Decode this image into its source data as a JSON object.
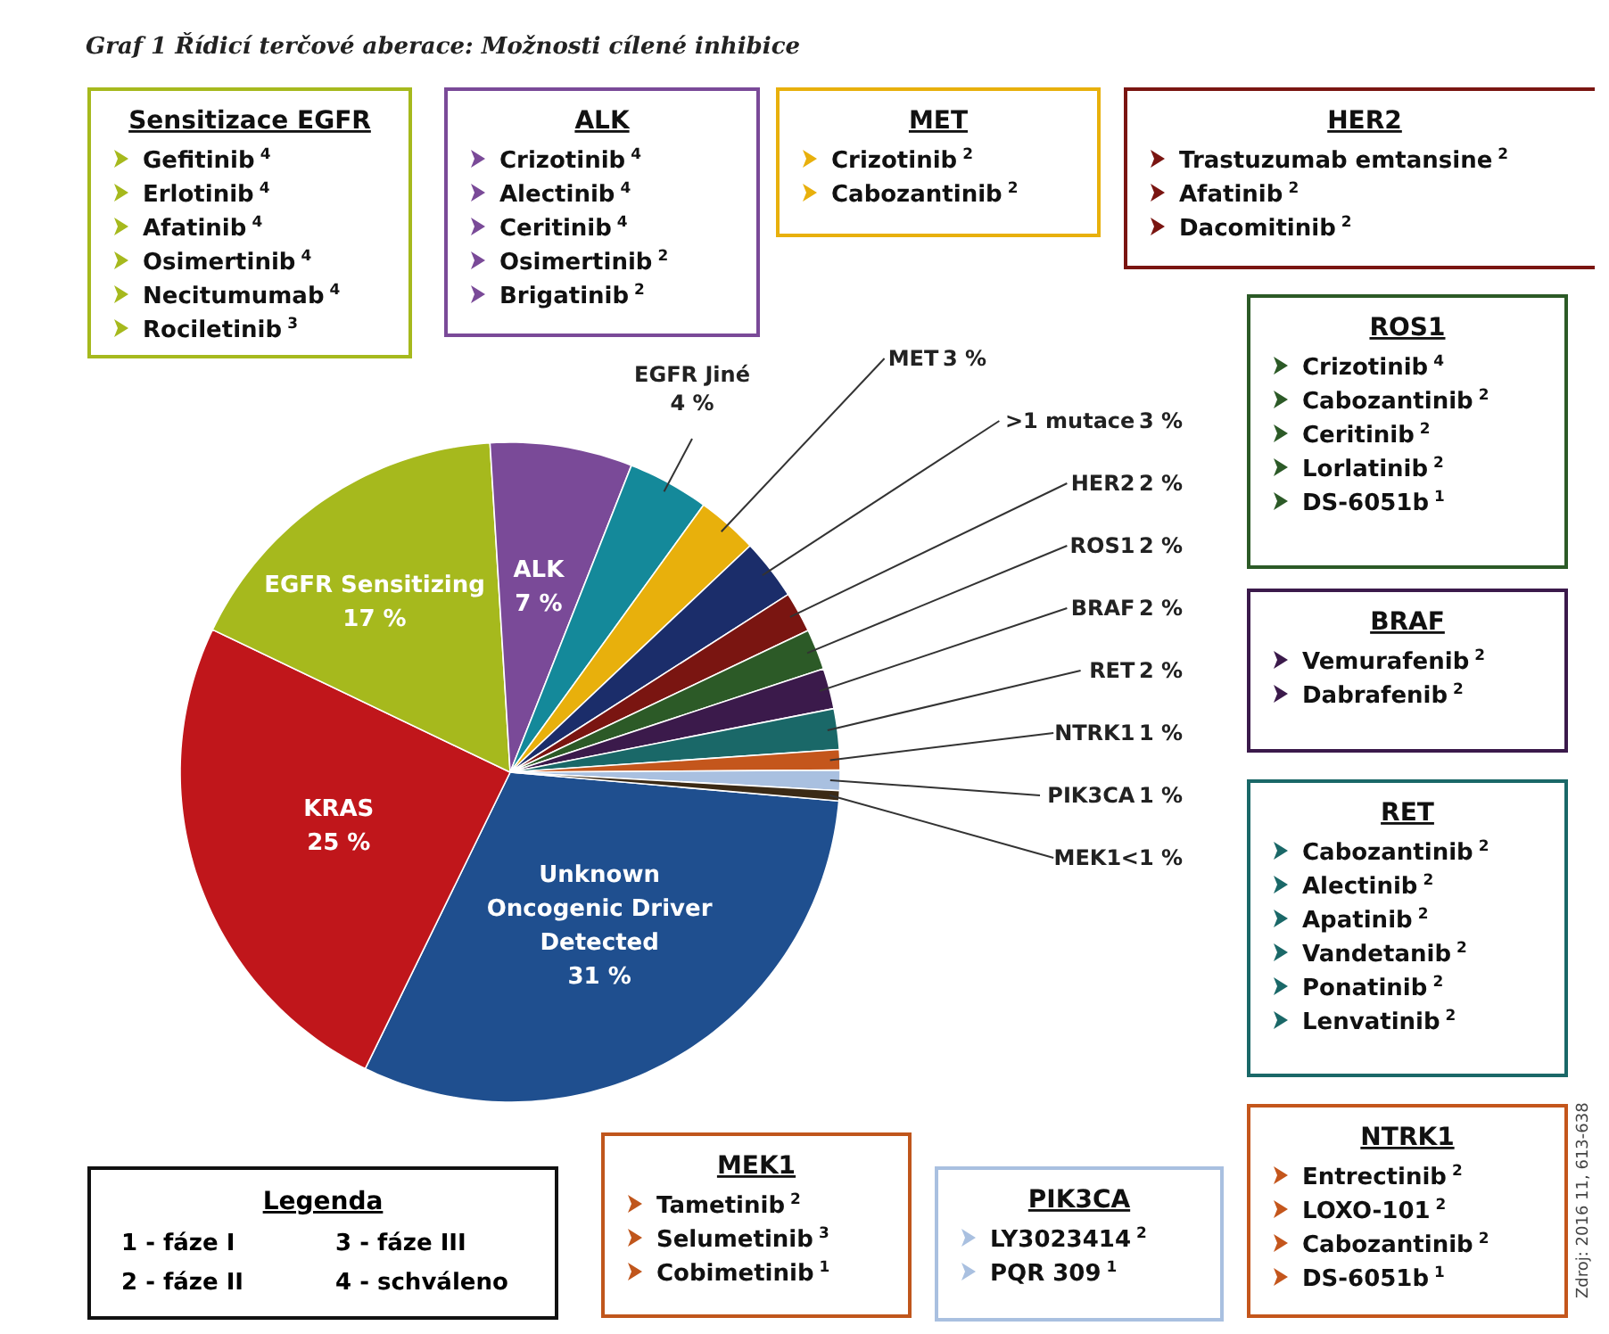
{
  "chart_data": {
    "type": "pie",
    "title": "Graf 1  Řídicí terčové aberace: Možnosti cílené inhibice",
    "categories": [
      "Unknown Oncogenic Driver Detected",
      "KRAS",
      "EGFR Sensitizing",
      "ALK",
      "EGFR Jiné",
      "MET",
      ">1 mutace",
      "HER2",
      "ROS1",
      "BRAF",
      "RET",
      "NTRK1",
      "PIK3CA",
      "MEK1"
    ],
    "values": [
      31,
      25,
      17,
      7,
      4,
      3,
      3,
      2,
      2,
      2,
      2,
      1,
      1,
      0.5
    ],
    "value_labels": [
      "31 %",
      "25 %",
      "17 %",
      "7 %",
      "4 %",
      "3 %",
      "3 %",
      "2 %",
      "2 %",
      "2 %",
      "2 %",
      "1 %",
      "1 %",
      "<1 %"
    ],
    "colors": [
      "#1f4f8f",
      "#c0161b",
      "#a6b91d",
      "#7a4a98",
      "#14899a",
      "#e8b00c",
      "#1b2d6a",
      "#7a1511",
      "#2c5a27",
      "#3b1a4b",
      "#1a6868",
      "#c4561c",
      "#a9c0e0",
      "#3b2a15"
    ],
    "annotations": [
      "Sensitizace EGFR\nGefitinib$^{4}$\nErlotinib$^{4}$\nAfatinib$^{4}$\nOsimertinib$^{4}$\nNecitumumab$^{4}$\nRociletinib$^{3}$",
      "ALK\nCrizotinib$^{4}$\nAlectinib$^{4}$\nCeritinib$^{4}$\nOsimertinib$^{2}$\nBrigatinib$^{2}$",
      "MET\nCrizotinib$^{2}$\nCabozantinib$^{2}$",
      "HER2\nTrastuzumab emtansine$^{2}$\nAfatinib$^{2}$\nDacomitinib$^{2}$",
      "ROS1\nCrizotinib$^{4}$\nCabozantinib$^{2}$\nCeritinib$^{2}$\nLorlatinib$^{2}$\nDS-6051b$^{1}$",
      "BRAF\nVemurafenib$^{2}$\nDabrafenib$^{2}$",
      "RET\nCabozantinib$^{2}$\nAlectinib$^{2}$\nApatinib$^{2}$\nVandetanib$^{2}$\nPonatinib$^{2}$\nLenvatinib$^{2}$",
      "NTRK1\nEntrectinib$^{2}$\nLOXO-101$^{2}$\nCabozantinib$^{2}$\nDS-6051b$^{1}$",
      "MEK1\nTametinib$^{2}$\nSelumetinib$^{3}$\nCobimetinib$^{1}$",
      "PIK3CA\nLY3023414$^{2}$\nPQR 309$^{1}$",
      "Legenda\n1 - fáze I\n3 - fáze III\n2 - fáze II\n4 - schváleno",
      "Zdroj: 2016 11, 613-638"
    ]
  }
}
